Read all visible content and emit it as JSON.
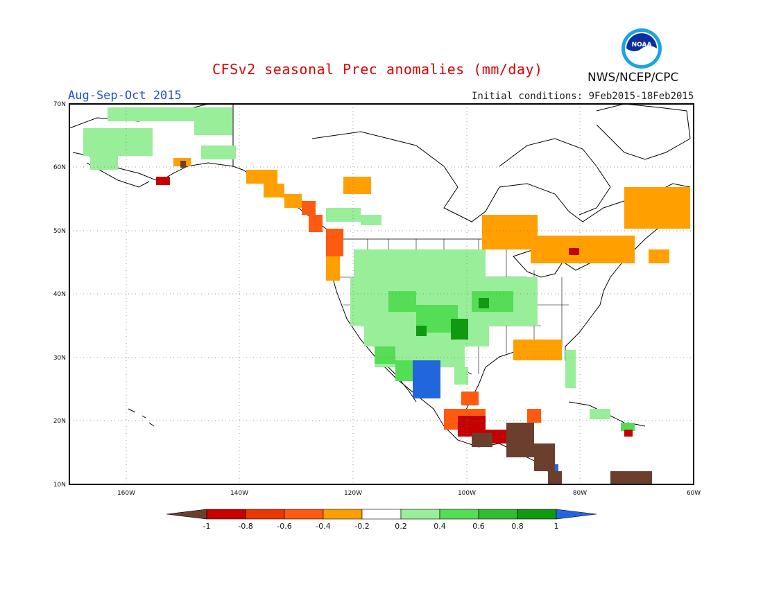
{
  "header": {
    "title": "CFSv2 seasonal Prec anomalies (mm/day)",
    "season": "Aug-Sep-Oct 2015",
    "initial_conditions": "Initial conditions: 9Feb2015-18Feb2015",
    "agency": "NWS/NCEP/CPC",
    "logo_text": "NOAA"
  },
  "map": {
    "lat_labels": [
      "70N",
      "60N",
      "50N",
      "40N",
      "30N",
      "20N",
      "10N"
    ],
    "lon_labels": [
      "160W",
      "140W",
      "120W",
      "100W",
      "80W",
      "60W"
    ],
    "lat_range": [
      10,
      70
    ],
    "lon_range": [
      -170,
      -60
    ],
    "grid": "dotted"
  },
  "colorbar": {
    "labels": [
      "-1",
      "-0.8",
      "-0.6",
      "-0.4",
      "-0.2",
      "0.2",
      "0.4",
      "0.6",
      "0.8",
      "1"
    ],
    "colors": [
      "#6b3f2e",
      "#c40000",
      "#e83800",
      "#ff5a10",
      "#ffa000",
      "#ffffff",
      "#99ee99",
      "#55dd55",
      "#33bb33",
      "#119911",
      "#2266dd"
    ]
  }
}
